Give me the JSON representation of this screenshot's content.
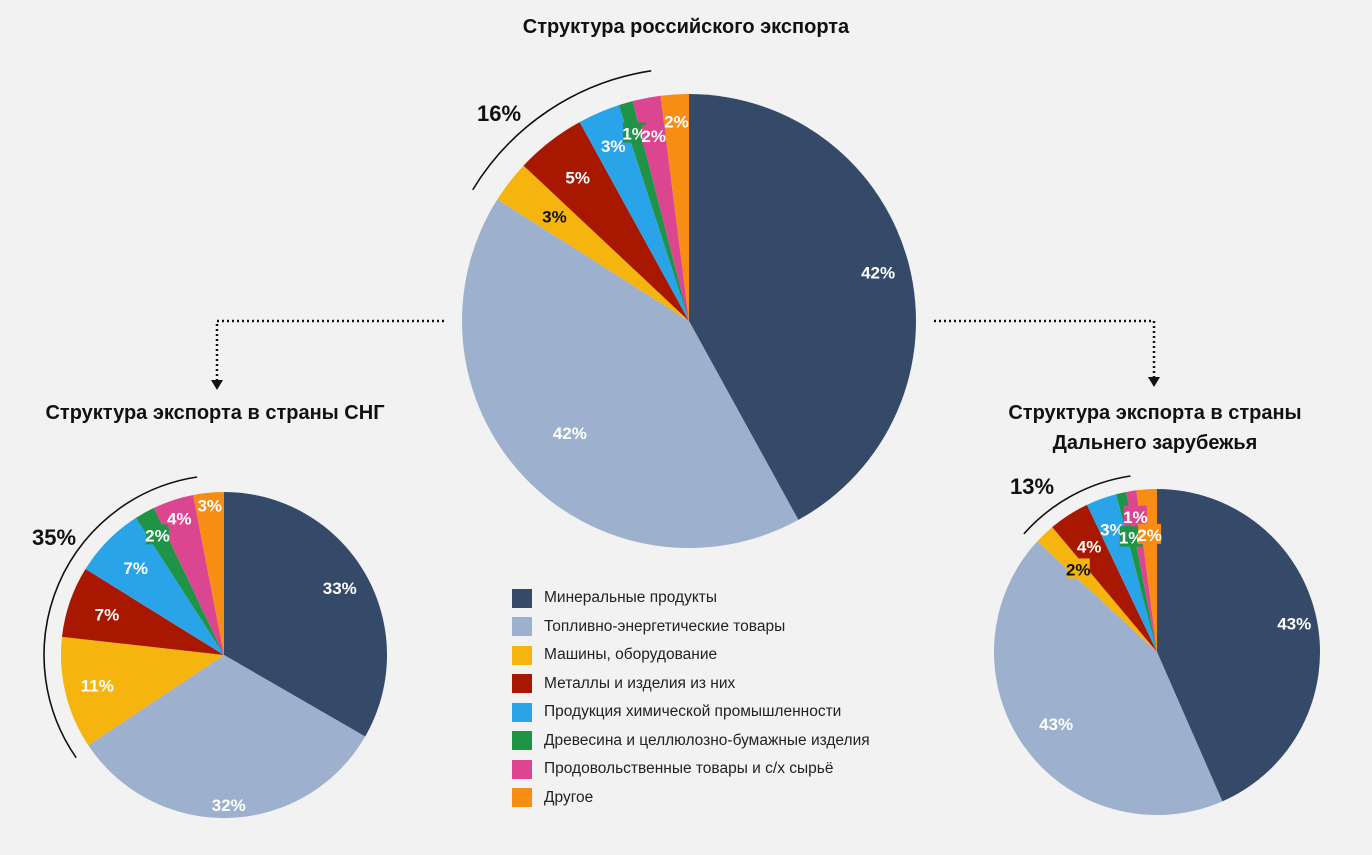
{
  "categories": [
    {
      "label": "Минеральные продукты",
      "color": "#354a69"
    },
    {
      "label": "Топливно-энергетические товары",
      "color": "#9db0cd"
    },
    {
      "label": "Машины, оборудование",
      "color": "#f5b50e"
    },
    {
      "label": "Металлы и изделия из них",
      "color": "#a81700"
    },
    {
      "label": "Продукция химической промышленности",
      "color": "#2aa4e8"
    },
    {
      "label": "Древесина и целлюлозно-бумажные изделия",
      "color": "#1f9447"
    },
    {
      "label": "Продовольственные товары и с/х сырьё",
      "color": "#dc4590"
    },
    {
      "label": "Другое",
      "color": "#f78d12"
    }
  ],
  "chart_data": [
    {
      "type": "pie",
      "id": "main",
      "title": "Структура российского экспорта",
      "values": [
        42,
        42,
        3,
        5,
        3,
        1,
        2,
        2
      ],
      "labels": [
        "42%",
        "42%",
        "3%",
        "5%",
        "3%",
        "1%",
        "2%",
        "2%"
      ],
      "group_label": "16%"
    },
    {
      "type": "pie",
      "id": "cis",
      "title": "Структура экспорта в страны СНГ",
      "values": [
        33,
        32,
        11,
        7,
        7,
        2,
        4,
        3
      ],
      "labels": [
        "33%",
        "32%",
        "11%",
        "7%",
        "7%",
        "2%",
        "4%",
        "3%"
      ],
      "group_label": "35%"
    },
    {
      "type": "pie",
      "id": "far",
      "title": "Структура экспорта в страны Дальнего зарубежья",
      "values": [
        43,
        43,
        2,
        4,
        3,
        1,
        1,
        2
      ],
      "labels": [
        "43%",
        "43%",
        "2%",
        "4%",
        "3%",
        "1%",
        "1%",
        "2%"
      ],
      "group_label": "13%"
    }
  ]
}
